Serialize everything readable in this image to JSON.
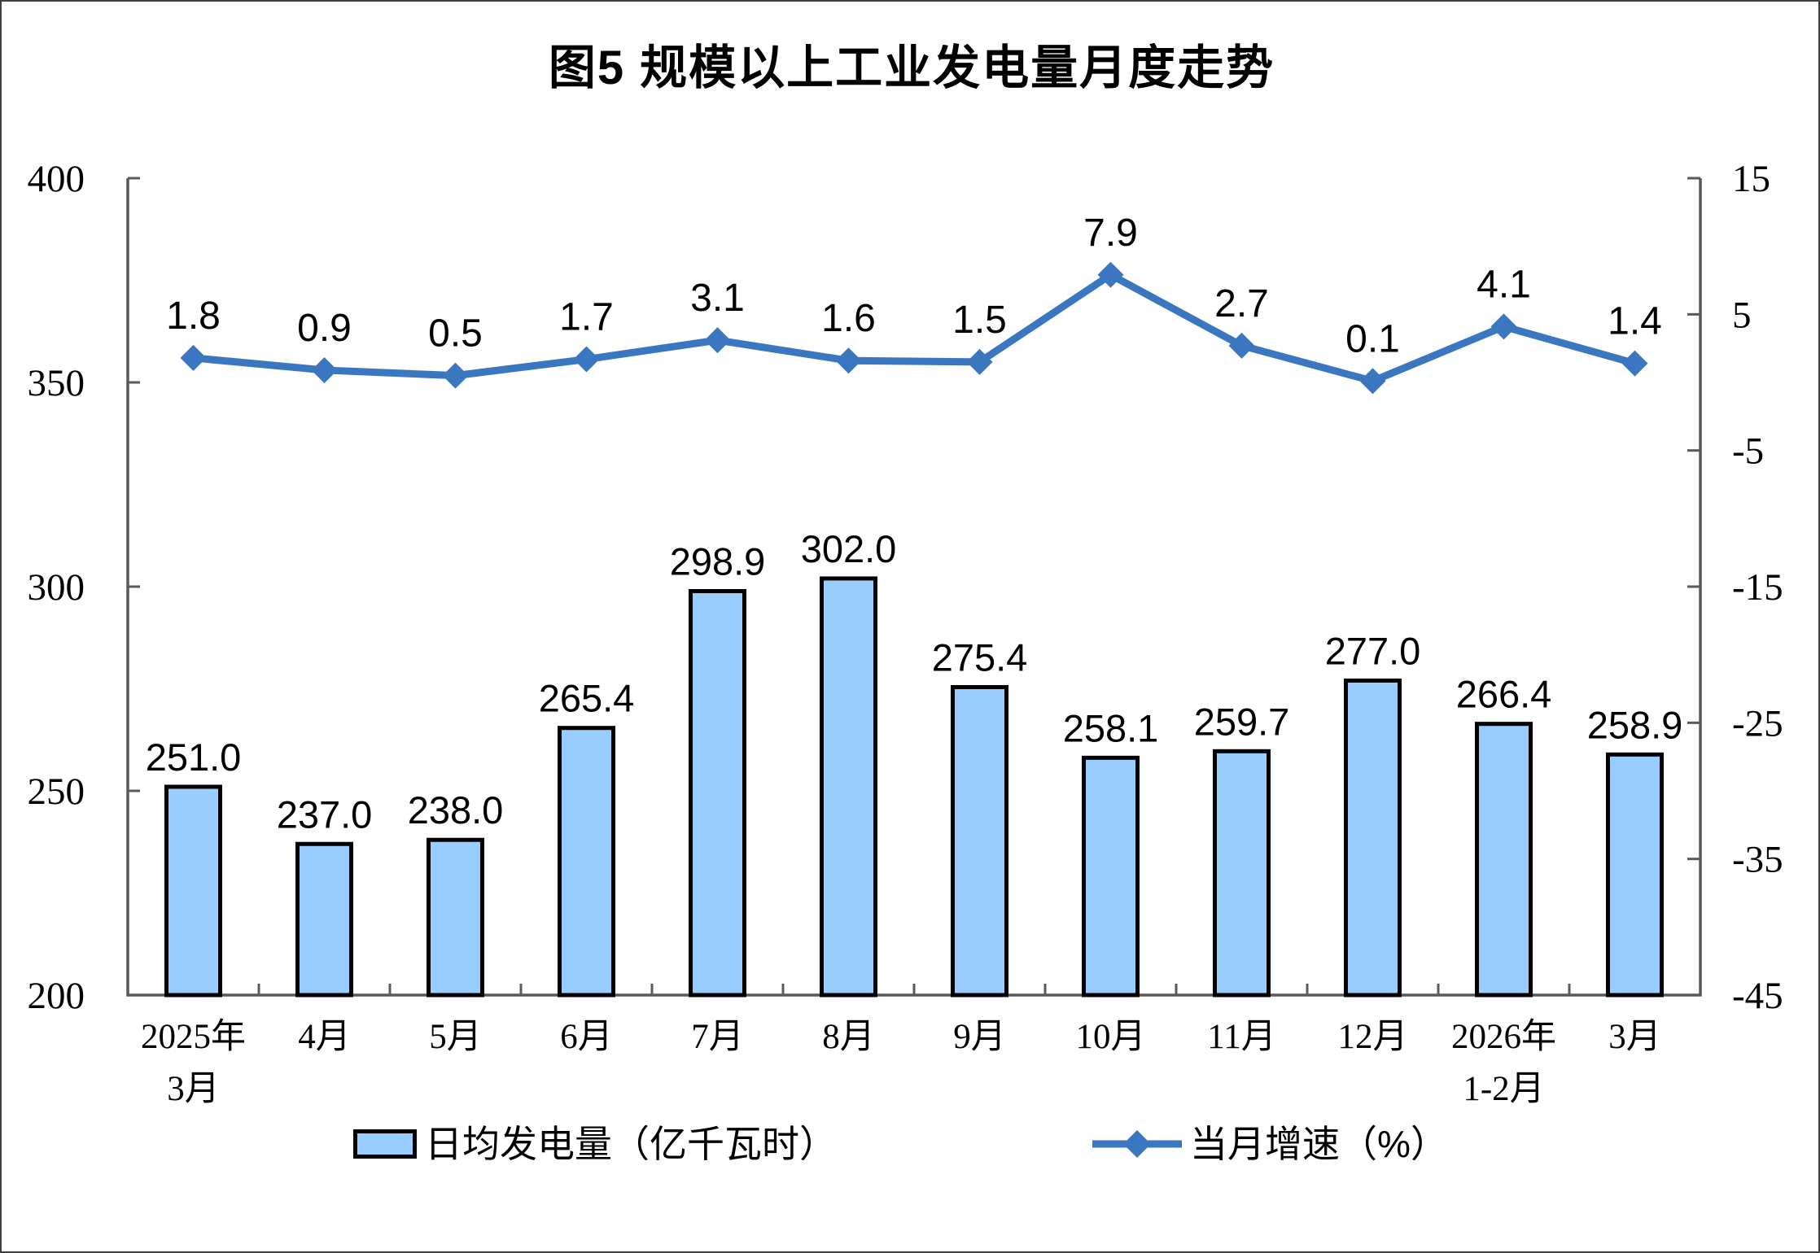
{
  "title": "图5 规模以上工业发电量月度走势",
  "chart_data": {
    "type": "bar+line combo",
    "title": "图5 规模以上工业发电量月度走势",
    "categories": [
      "2025年\n3月",
      "4月",
      "5月",
      "6月",
      "7月",
      "8月",
      "9月",
      "10月",
      "11月",
      "12月",
      "2026年\n1-2月",
      "3月"
    ],
    "series": [
      {
        "name": "日均发电量（亿千瓦时）",
        "type": "bar",
        "axis": "left",
        "values": [
          251.0,
          237.0,
          238.0,
          265.4,
          298.9,
          302.0,
          275.4,
          258.1,
          259.7,
          277.0,
          266.4,
          258.9
        ],
        "fill_color": "#99CCFF",
        "border_color": "#000000"
      },
      {
        "name": "当月增速（%）",
        "type": "line",
        "axis": "right",
        "values": [
          1.8,
          0.9,
          0.5,
          1.7,
          3.1,
          1.6,
          1.5,
          7.9,
          2.7,
          0.1,
          4.1,
          1.4
        ],
        "color": "#3B76C1",
        "marker": "diamond"
      }
    ],
    "left_axis": {
      "min": 200,
      "max": 400,
      "ticks": [
        400,
        350,
        300,
        250,
        200
      ]
    },
    "right_axis": {
      "min": -45,
      "max": 15,
      "ticks": [
        15,
        5,
        -5,
        -15,
        -25,
        -35,
        -45
      ]
    },
    "grid": false,
    "legend_position": "bottom",
    "value_label_decimals": 1
  }
}
